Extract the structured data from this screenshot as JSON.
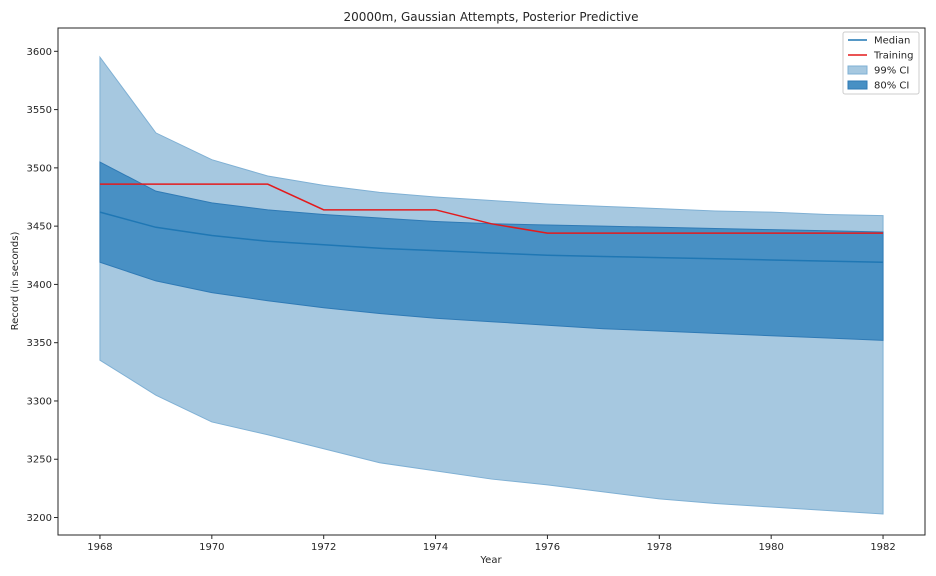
{
  "chart_data": {
    "type": "line",
    "title": "20000m, Gaussian Attempts, Posterior Predictive",
    "xlabel": "Year",
    "ylabel": "Record (in seconds)",
    "xlim": [
      1967.25,
      1982.75
    ],
    "ylim": [
      3185,
      3620
    ],
    "xticks": [
      1968,
      1970,
      1972,
      1974,
      1976,
      1978,
      1980,
      1982
    ],
    "yticks": [
      3200,
      3250,
      3300,
      3350,
      3400,
      3450,
      3500,
      3550,
      3600
    ],
    "grid": false,
    "legend_position": "top-right",
    "x": [
      1968,
      1969,
      1970,
      1971,
      1972,
      1973,
      1974,
      1975,
      1976,
      1977,
      1978,
      1979,
      1980,
      1981,
      1982
    ],
    "series": [
      {
        "name": "Median",
        "kind": "line",
        "color": "#1f77b4",
        "values": [
          3462,
          3449,
          3442,
          3437,
          3434,
          3431,
          3429,
          3427,
          3425,
          3424,
          3423,
          3422,
          3421,
          3420,
          3419
        ]
      },
      {
        "name": "Training",
        "kind": "line",
        "color": "#e31a1c",
        "values": [
          3486,
          3486,
          3486,
          3486,
          3464,
          3464,
          3464,
          3452,
          3444,
          3444,
          3444,
          3444,
          3444,
          3444,
          3444
        ]
      },
      {
        "name": "99% CI",
        "kind": "band",
        "color": "#a6c8e0",
        "lower": [
          3335,
          3305,
          3282,
          3271,
          3259,
          3247,
          3240,
          3233,
          3228,
          3222,
          3216,
          3212,
          3209,
          3206,
          3203
        ],
        "upper": [
          3595,
          3530,
          3507,
          3493,
          3485,
          3479,
          3475,
          3472,
          3469,
          3467,
          3465,
          3463,
          3462,
          3460,
          3459
        ]
      },
      {
        "name": "80% CI",
        "kind": "band",
        "color": "#4890c4",
        "lower": [
          3419,
          3403,
          3393,
          3386,
          3380,
          3375,
          3371,
          3368,
          3365,
          3362,
          3360,
          3358,
          3356,
          3354,
          3352
        ],
        "upper": [
          3505,
          3480,
          3470,
          3464,
          3460,
          3457,
          3454,
          3452,
          3451,
          3450,
          3449,
          3448,
          3447,
          3446,
          3445
        ]
      }
    ]
  }
}
